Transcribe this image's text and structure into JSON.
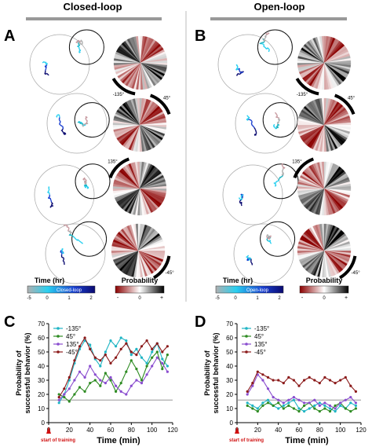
{
  "headers": {
    "closed": "Closed-loop",
    "open": "Open-loop"
  },
  "panel_letters": [
    "A",
    "B",
    "C",
    "D"
  ],
  "arc_labels": {
    "A": [
      "-135°",
      "45°",
      "135°",
      "-45°"
    ],
    "B": [
      "-135°",
      "45°",
      "135°",
      "-45°"
    ]
  },
  "colorbars": {
    "time": {
      "title": "Time (hr)",
      "ticks": [
        "-5",
        "0",
        "1",
        "2"
      ],
      "closed_label": "Closed-loop",
      "open_label": "Open-loop",
      "colors": [
        "#b0b0b0",
        "#2ad0f0",
        "#1a3fd0",
        "#0a0a70"
      ]
    },
    "probability": {
      "title": "Probability",
      "ticks": [
        "-",
        "0",
        "+"
      ],
      "colors": [
        "#8b0000",
        "#ffffff",
        "#000000"
      ]
    }
  },
  "chart_data": [
    {
      "panel": "C",
      "type": "line",
      "xlabel": "Time (min)",
      "ylabel": "Probability of successful behavior (%)",
      "xlim": [
        0,
        120
      ],
      "ylim": [
        0,
        70
      ],
      "xticks": [
        0,
        20,
        40,
        60,
        80,
        100,
        120
      ],
      "yticks": [
        0,
        10,
        20,
        30,
        40,
        50,
        60,
        70
      ],
      "reference_line": 16,
      "annotation": "start of training",
      "x": [
        10,
        15,
        20,
        25,
        30,
        35,
        40,
        45,
        50,
        55,
        60,
        65,
        70,
        75,
        80,
        85,
        90,
        95,
        100,
        105,
        110,
        115
      ],
      "series": [
        {
          "name": "-135°",
          "color": "#1fb5c4",
          "values": [
            14,
            20,
            30,
            42,
            52,
            58,
            55,
            45,
            40,
            50,
            58,
            54,
            60,
            58,
            48,
            52,
            46,
            42,
            50,
            56,
            45,
            40
          ]
        },
        {
          "name": "45°",
          "color": "#2e8b22",
          "values": [
            20,
            18,
            15,
            20,
            25,
            22,
            28,
            30,
            26,
            35,
            30,
            22,
            28,
            36,
            44,
            38,
            30,
            40,
            46,
            50,
            38,
            48
          ]
        },
        {
          "name": "135°",
          "color": "#8a4dcf",
          "values": [
            16,
            20,
            24,
            30,
            36,
            32,
            40,
            34,
            30,
            28,
            32,
            26,
            22,
            20,
            26,
            30,
            28,
            34,
            40,
            46,
            42,
            36
          ]
        },
        {
          "name": "-45°",
          "color": "#8b1a1a",
          "values": [
            18,
            24,
            32,
            44,
            54,
            60,
            52,
            46,
            44,
            48,
            42,
            46,
            52,
            56,
            50,
            48,
            54,
            58,
            52,
            56,
            50,
            54
          ]
        }
      ]
    },
    {
      "panel": "D",
      "type": "line",
      "xlabel": "Time (min)",
      "ylabel": "Probability of successful behavior (%)",
      "xlim": [
        0,
        120
      ],
      "ylim": [
        0,
        70
      ],
      "xticks": [
        0,
        20,
        40,
        60,
        80,
        100,
        120
      ],
      "yticks": [
        0,
        10,
        20,
        30,
        40,
        50,
        60,
        70
      ],
      "reference_line": 16,
      "annotation": "start of training",
      "x": [
        10,
        15,
        20,
        25,
        30,
        35,
        40,
        45,
        50,
        55,
        60,
        65,
        70,
        75,
        80,
        85,
        90,
        95,
        100,
        105,
        110,
        115
      ],
      "series": [
        {
          "name": "-135°",
          "color": "#1fb5c4",
          "values": [
            14,
            12,
            10,
            14,
            16,
            12,
            10,
            12,
            14,
            16,
            10,
            8,
            10,
            12,
            14,
            12,
            10,
            8,
            12,
            10,
            14,
            12
          ]
        },
        {
          "name": "45°",
          "color": "#2e8b22",
          "values": [
            12,
            10,
            8,
            12,
            14,
            12,
            14,
            10,
            12,
            10,
            8,
            12,
            14,
            10,
            8,
            10,
            8,
            12,
            14,
            10,
            8,
            10
          ]
        },
        {
          "name": "135°",
          "color": "#8a4dcf",
          "values": [
            20,
            26,
            34,
            30,
            24,
            18,
            16,
            14,
            16,
            18,
            16,
            14,
            14,
            16,
            12,
            14,
            12,
            10,
            14,
            16,
            18,
            14
          ]
        },
        {
          "name": "-45°",
          "color": "#8b1a1a",
          "values": [
            22,
            28,
            36,
            34,
            32,
            30,
            30,
            28,
            32,
            30,
            26,
            30,
            32,
            30,
            28,
            32,
            30,
            28,
            30,
            32,
            26,
            22
          ]
        }
      ]
    }
  ]
}
